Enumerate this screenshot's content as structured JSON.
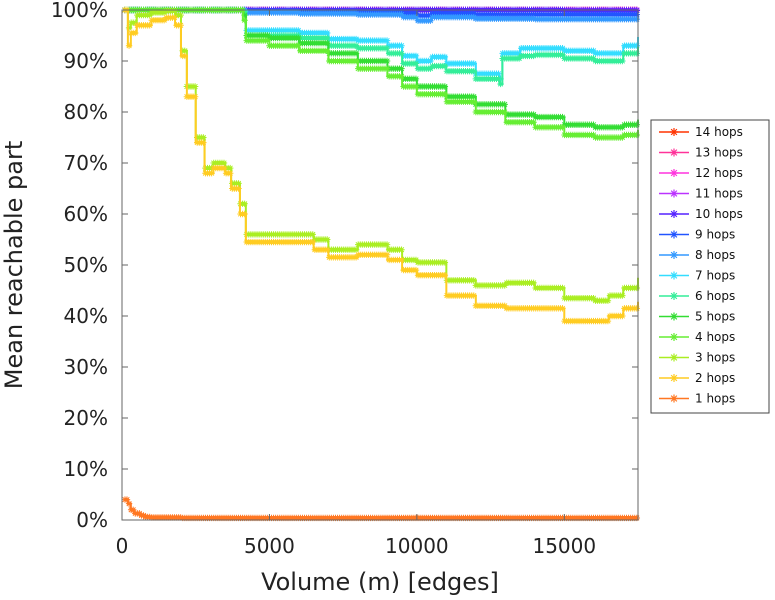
{
  "chart_data": {
    "type": "line",
    "xlabel": "Volume (m) [edges]",
    "ylabel": "Mean reachable part",
    "xlim": [
      0,
      17500
    ],
    "ylim": [
      0,
      100
    ],
    "xticks": [
      0,
      5000,
      10000,
      15000
    ],
    "xtick_labels": [
      "0",
      "5000",
      "10000",
      "15000"
    ],
    "yticks": [
      0,
      10,
      20,
      30,
      40,
      50,
      60,
      70,
      80,
      90,
      100
    ],
    "ytick_labels": [
      "0%",
      "10%",
      "20%",
      "30%",
      "40%",
      "50%",
      "60%",
      "70%",
      "80%",
      "90%",
      "100%"
    ],
    "grid": false,
    "legend_position": "right",
    "marker": "star",
    "series": [
      {
        "name": "14 hops",
        "color": "#ff3300",
        "x": [
          100,
          2000,
          5000,
          10000,
          15000,
          17500
        ],
        "values": [
          100,
          100,
          100,
          100,
          100,
          100
        ]
      },
      {
        "name": "13 hops",
        "color": "#ff3399",
        "x": [
          100,
          2000,
          5000,
          10000,
          15000,
          17500
        ],
        "values": [
          100,
          100,
          100,
          100,
          100,
          100
        ]
      },
      {
        "name": "12 hops",
        "color": "#ff33dd",
        "x": [
          100,
          2000,
          5000,
          10000,
          15000,
          17500
        ],
        "values": [
          100,
          100,
          100,
          100,
          100,
          100
        ]
      },
      {
        "name": "11 hops",
        "color": "#bb33ff",
        "x": [
          100,
          2000,
          5000,
          10000,
          15000,
          17500
        ],
        "values": [
          100,
          100,
          100,
          100,
          100,
          100
        ]
      },
      {
        "name": "10 hops",
        "color": "#5522ff",
        "x": [
          100,
          2000,
          4200,
          5000,
          10000,
          15000,
          17500
        ],
        "values": [
          100,
          100,
          100,
          100,
          100,
          99.9,
          99.9
        ]
      },
      {
        "name": "9 hops",
        "color": "#2255ff",
        "x": [
          100,
          2000,
          4200,
          6000,
          8000,
          9500,
          10000,
          10500,
          12000,
          14000,
          15500,
          17500
        ],
        "values": [
          100,
          100,
          99.8,
          99.7,
          99.6,
          99.3,
          98.9,
          99.3,
          99.1,
          99.1,
          99.1,
          99.2
        ]
      },
      {
        "name": "8 hops",
        "color": "#3399ff",
        "x": [
          100,
          2000,
          4200,
          6000,
          8000,
          9500,
          10000,
          10500,
          12000,
          14000,
          15500,
          17500
        ],
        "values": [
          100,
          100,
          99.5,
          99.3,
          99.1,
          98.6,
          97.9,
          98.6,
          98.3,
          98.2,
          98.2,
          98.4
        ]
      },
      {
        "name": "7 hops",
        "color": "#33ddff",
        "x": [
          100,
          2000,
          4100,
          4200,
          5000,
          6000,
          7000,
          8000,
          9000,
          9500,
          10000,
          10500,
          11000,
          12000,
          12800,
          12900,
          13500,
          14000,
          15000,
          16000,
          17000,
          17500
        ],
        "values": [
          100,
          100,
          99.8,
          96.0,
          96.0,
          95.5,
          94.3,
          94.0,
          93.0,
          91.0,
          90.0,
          90.8,
          89.5,
          87.5,
          86.5,
          91.5,
          92.5,
          92.5,
          92.0,
          91.5,
          93.0,
          94.7
        ]
      },
      {
        "name": "6 hops",
        "color": "#33ee99",
        "x": [
          100,
          2000,
          4100,
          4200,
          5000,
          6000,
          7000,
          8000,
          9000,
          9500,
          10000,
          10500,
          11000,
          12000,
          12800,
          12900,
          13500,
          14000,
          15000,
          16000,
          17000,
          17500
        ],
        "values": [
          100,
          100,
          99.6,
          95.0,
          95.0,
          94.5,
          93.0,
          92.5,
          91.5,
          89.5,
          88.5,
          89.0,
          88.0,
          86.5,
          85.5,
          90.5,
          91.0,
          91.2,
          90.5,
          90.0,
          91.5,
          92.8
        ]
      },
      {
        "name": "5 hops",
        "color": "#33dd33",
        "x": [
          100,
          2000,
          4100,
          4200,
          5000,
          6000,
          7000,
          8000,
          9000,
          9500,
          10000,
          11000,
          12000,
          13000,
          14000,
          15000,
          16000,
          17000,
          17500
        ],
        "values": [
          100,
          100,
          99.0,
          95.0,
          94.5,
          93.5,
          91.5,
          90.0,
          88.5,
          86.5,
          85.0,
          83.0,
          81.5,
          79.5,
          79.0,
          77.5,
          77.0,
          77.5,
          78.5
        ]
      },
      {
        "name": "4 hops",
        "color": "#66ee33",
        "x": [
          100,
          2000,
          4100,
          4200,
          5000,
          6000,
          7000,
          8000,
          9000,
          9500,
          10000,
          11000,
          12000,
          13000,
          14000,
          15000,
          16000,
          17000,
          17500
        ],
        "values": [
          100,
          100,
          98.0,
          94.0,
          93.0,
          92.0,
          90.0,
          88.5,
          87.0,
          85.0,
          83.5,
          82.0,
          80.0,
          78.0,
          77.0,
          75.5,
          75.0,
          75.5,
          76.5
        ]
      },
      {
        "name": "3 hops",
        "color": "#aaee22",
        "x": [
          100,
          200,
          300,
          500,
          1000,
          1500,
          1800,
          2000,
          2200,
          2500,
          2800,
          3100,
          3300,
          3500,
          3700,
          4000,
          4200,
          5000,
          6000,
          6500,
          7000,
          8000,
          9000,
          9500,
          10000,
          11000,
          12000,
          13000,
          14000,
          15000,
          16000,
          16500,
          17000,
          17500
        ],
        "values": [
          100,
          96.5,
          97.5,
          99.0,
          99.5,
          99.8,
          99.0,
          92.0,
          85.0,
          75.0,
          69.0,
          70.0,
          70.0,
          69.0,
          66.0,
          62.0,
          56.0,
          56.0,
          56.0,
          55.0,
          53.0,
          54.0,
          53.0,
          51.0,
          50.5,
          47.0,
          46.0,
          46.5,
          45.5,
          43.5,
          43.0,
          44.0,
          45.5,
          47.5
        ]
      },
      {
        "name": "2 hops",
        "color": "#ffcc22",
        "x": [
          100,
          200,
          300,
          500,
          1000,
          1500,
          1800,
          2000,
          2200,
          2500,
          2800,
          3100,
          3300,
          3500,
          3700,
          4000,
          4200,
          5000,
          6000,
          6500,
          7000,
          8000,
          9000,
          9500,
          10000,
          11000,
          12000,
          13000,
          14000,
          15000,
          16000,
          16500,
          17000,
          17500
        ],
        "values": [
          100,
          93.0,
          95.5,
          97.0,
          98.0,
          98.5,
          97.0,
          91.0,
          83.0,
          74.0,
          68.0,
          69.0,
          69.0,
          68.0,
          65.0,
          60.0,
          54.5,
          54.5,
          54.5,
          53.0,
          51.5,
          52.0,
          51.0,
          49.0,
          48.0,
          44.0,
          42.0,
          41.5,
          41.5,
          39.0,
          39.0,
          40.0,
          41.5,
          42.8
        ]
      },
      {
        "name": "1 hops",
        "color": "#ff7722",
        "x": [
          100,
          200,
          300,
          400,
          600,
          800,
          1000,
          2000,
          5000,
          10000,
          15000,
          17500
        ],
        "values": [
          4.0,
          3.2,
          2.0,
          1.3,
          0.9,
          0.6,
          0.5,
          0.4,
          0.4,
          0.4,
          0.4,
          0.4
        ]
      }
    ]
  }
}
